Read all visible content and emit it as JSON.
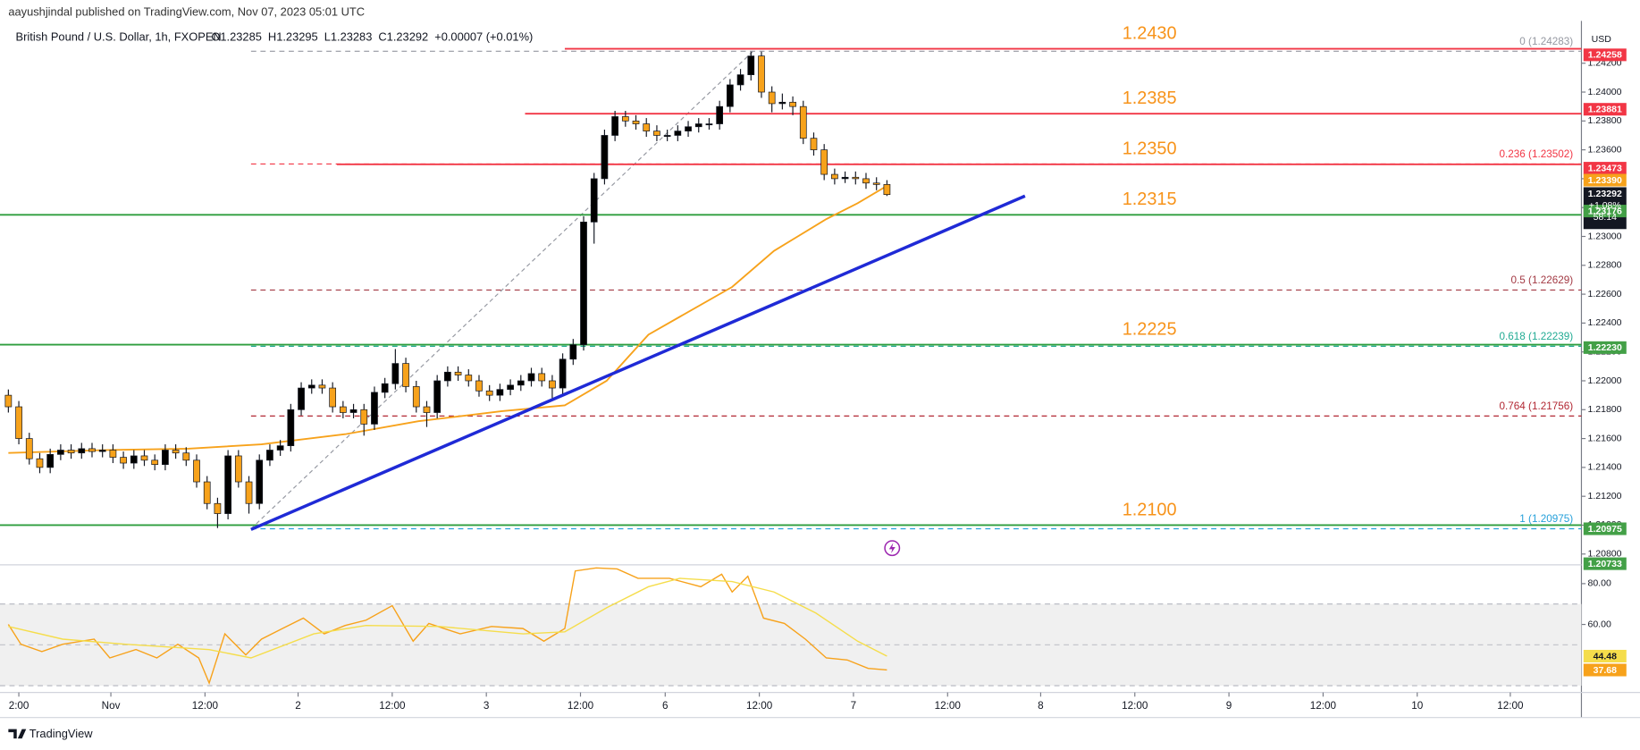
{
  "header": {
    "publisher": "aayushjindal published on TradingView.com, Nov 07, 2023 05:01 UTC",
    "symbol": "British Pound / U.S. Dollar, 1h, FXOPEN",
    "ohlc": [
      "O1.23285",
      "H1.23295",
      "L1.23283",
      "C1.23292",
      "+0.00007 (+0.01%)"
    ]
  },
  "currency": "USD",
  "footer": "TradingView",
  "chart_data": [
    {
      "type": "candlestick",
      "up_color": "#000000",
      "down_color": "#f7a21b",
      "xlim": [
        -0.8,
        150.4
      ],
      "ylim": [
        1.20725,
        1.24435
      ],
      "xticks": [
        {
          "value": 1.0,
          "label": "2:00"
        },
        {
          "value": 9.8,
          "label": "Nov"
        },
        {
          "value": 18.8,
          "label": "12:00"
        },
        {
          "value": 27.7,
          "label": "2"
        },
        {
          "value": 36.7,
          "label": "12:00"
        },
        {
          "value": 45.7,
          "label": "3"
        },
        {
          "value": 54.7,
          "label": "12:00"
        },
        {
          "value": 62.8,
          "label": "6"
        },
        {
          "value": 71.8,
          "label": "12:00"
        },
        {
          "value": 80.8,
          "label": "7"
        },
        {
          "value": 89.8,
          "label": "12:00"
        },
        {
          "value": 98.7,
          "label": "8"
        },
        {
          "value": 107.7,
          "label": "12:00"
        },
        {
          "value": 116.7,
          "label": "9"
        },
        {
          "value": 125.7,
          "label": "12:00"
        },
        {
          "value": 134.7,
          "label": "10"
        },
        {
          "value": 143.6,
          "label": "12:00"
        }
      ],
      "yticks": [
        {
          "value": 1.208,
          "label": "1.20800"
        },
        {
          "value": 1.21,
          "label": "1.21000"
        },
        {
          "value": 1.212,
          "label": "1.21200"
        },
        {
          "value": 1.214,
          "label": "1.21400"
        },
        {
          "value": 1.216,
          "label": "1.21600"
        },
        {
          "value": 1.218,
          "label": "1.21800"
        },
        {
          "value": 1.22,
          "label": "1.22000"
        },
        {
          "value": 1.222,
          "label": "1.22200"
        },
        {
          "value": 1.224,
          "label": "1.22400"
        },
        {
          "value": 1.226,
          "label": "1.22600"
        },
        {
          "value": 1.228,
          "label": "1.22800"
        },
        {
          "value": 1.23,
          "label": "1.23000"
        },
        {
          "value": 1.232,
          "label": "1.23200"
        },
        {
          "value": 1.234,
          "label": "1.23400"
        },
        {
          "value": 1.236,
          "label": "1.23600"
        },
        {
          "value": 1.238,
          "label": "1.23800"
        },
        {
          "value": 1.24,
          "label": "1.24000"
        },
        {
          "value": 1.242,
          "label": "1.24200"
        }
      ],
      "open": [
        1.219,
        1.2182,
        1.216,
        1.2146,
        1.214,
        1.2149,
        1.2152,
        1.215,
        1.2153,
        1.2151,
        1.2152,
        1.2147,
        1.2143,
        1.2148,
        1.2145,
        1.2142,
        1.2152,
        1.215,
        1.2145,
        1.213,
        1.2115,
        1.2108,
        1.2148,
        1.213,
        1.2115,
        1.2145,
        1.2152,
        1.2155,
        1.218,
        1.2195,
        1.2197,
        1.2195,
        1.2182,
        1.2178,
        1.218,
        1.217,
        1.2192,
        1.2198,
        1.2212,
        1.2196,
        1.2182,
        1.2178,
        1.22,
        1.2206,
        1.2204,
        1.22,
        1.2193,
        1.219,
        1.2194,
        1.2197,
        1.22,
        1.2205,
        1.22,
        1.2195,
        1.2215,
        1.2225,
        1.231,
        1.234,
        1.237,
        1.2383,
        1.238,
        1.2378,
        1.2373,
        1.237,
        1.237,
        1.2373,
        1.2376,
        1.2378,
        1.2378,
        1.239,
        1.2405,
        1.2412,
        1.2425,
        1.24,
        1.2392,
        1.2393,
        1.239,
        1.2368,
        1.236,
        1.2343,
        1.234,
        1.2341,
        1.234,
        1.2337,
        1.2336
      ],
      "high": [
        1.2194,
        1.2186,
        1.2164,
        1.215,
        1.2153,
        1.2156,
        1.2156,
        1.2157,
        1.2157,
        1.2156,
        1.2156,
        1.2151,
        1.2152,
        1.2152,
        1.2149,
        1.2156,
        1.2156,
        1.2154,
        1.2149,
        1.2134,
        1.2119,
        1.2152,
        1.2152,
        1.2134,
        1.2149,
        1.2156,
        1.2159,
        1.2184,
        1.2199,
        1.2201,
        1.2201,
        1.2199,
        1.2186,
        1.2184,
        1.2184,
        1.2196,
        1.2202,
        1.2222,
        1.2216,
        1.22,
        1.2186,
        1.2204,
        1.221,
        1.221,
        1.2208,
        1.2204,
        1.2197,
        1.2198,
        1.2201,
        1.2204,
        1.2209,
        1.2209,
        1.2204,
        1.2219,
        1.2229,
        1.2314,
        1.2344,
        1.2374,
        1.2387,
        1.2387,
        1.2384,
        1.2382,
        1.2377,
        1.2374,
        1.2377,
        1.238,
        1.2382,
        1.2382,
        1.2394,
        1.2409,
        1.2416,
        1.2428,
        1.2428,
        1.2404,
        1.2399,
        1.2397,
        1.2394,
        1.2372,
        1.2364,
        1.2347,
        1.2345,
        1.2345,
        1.2344,
        1.2341,
        1.2339
      ],
      "low": [
        1.2178,
        1.2156,
        1.2142,
        1.2136,
        1.2136,
        1.2145,
        1.2146,
        1.2146,
        1.2147,
        1.2147,
        1.2143,
        1.2139,
        1.2139,
        1.2141,
        1.2138,
        1.2138,
        1.2146,
        1.2141,
        1.2126,
        1.2111,
        1.2098,
        1.2104,
        1.2126,
        1.2108,
        1.2111,
        1.2141,
        1.2148,
        1.2151,
        1.2176,
        1.2191,
        1.2191,
        1.2178,
        1.2174,
        1.2174,
        1.2162,
        1.2166,
        1.2188,
        1.2194,
        1.2192,
        1.2178,
        1.2168,
        1.2174,
        1.2196,
        1.22,
        1.2196,
        1.2189,
        1.2186,
        1.2186,
        1.219,
        1.2193,
        1.2196,
        1.2196,
        1.2188,
        1.2191,
        1.2211,
        1.2221,
        1.2295,
        1.2336,
        1.2366,
        1.2376,
        1.2374,
        1.2369,
        1.2366,
        1.2366,
        1.2366,
        1.2369,
        1.2372,
        1.2374,
        1.2374,
        1.2386,
        1.2401,
        1.2408,
        1.2396,
        1.2386,
        1.2388,
        1.2384,
        1.2364,
        1.2356,
        1.2339,
        1.2336,
        1.2337,
        1.2336,
        1.2333,
        1.2332,
        1.2328
      ],
      "close": [
        1.2182,
        1.216,
        1.2146,
        1.214,
        1.2149,
        1.2152,
        1.215,
        1.2153,
        1.2151,
        1.2152,
        1.2147,
        1.2143,
        1.2148,
        1.2145,
        1.2142,
        1.2152,
        1.215,
        1.2145,
        1.213,
        1.2115,
        1.2108,
        1.2148,
        1.213,
        1.2115,
        1.2145,
        1.2152,
        1.2155,
        1.218,
        1.2195,
        1.2197,
        1.2195,
        1.2182,
        1.2178,
        1.218,
        1.217,
        1.2192,
        1.2198,
        1.2212,
        1.2196,
        1.2182,
        1.2178,
        1.22,
        1.2206,
        1.2204,
        1.22,
        1.2193,
        1.219,
        1.2194,
        1.2197,
        1.22,
        1.2205,
        1.22,
        1.2195,
        1.2215,
        1.2225,
        1.231,
        1.234,
        1.237,
        1.2383,
        1.238,
        1.2378,
        1.2373,
        1.237,
        1.237,
        1.2373,
        1.2376,
        1.2378,
        1.2378,
        1.239,
        1.2405,
        1.2412,
        1.2425,
        1.24,
        1.2392,
        1.2393,
        1.239,
        1.2368,
        1.236,
        1.2343,
        1.234,
        1.2341,
        1.234,
        1.2337,
        1.2336,
        1.2329
      ],
      "line_series": [
        {
          "color": "#f7a21b",
          "x": [
            0,
            9.2,
            17.2,
            24.2,
            32.2,
            39.2,
            47.2,
            53.2,
            57.2,
            61.2,
            69.2,
            73.2,
            78.2,
            81.2,
            84
          ],
          "values": [
            1.215,
            1.2152,
            1.2153,
            1.2156,
            1.2163,
            1.2172,
            1.2179,
            1.2183,
            1.22,
            1.2232,
            1.2265,
            1.229,
            1.2312,
            1.2323,
            1.2335
          ]
        }
      ],
      "trendline": {
        "color": "#1f2ad6",
        "x": [
          23.2,
          97.2
        ],
        "values": [
          1.2097,
          1.2328
        ]
      },
      "fib_anchor": {
        "x": [
          23.2,
          71.2
        ],
        "values": [
          1.20975,
          1.24283
        ]
      },
      "fib": [
        {
          "value": 1.24283,
          "label": "0 (1.24283)",
          "color": "#9598a1"
        },
        {
          "value": 1.23502,
          "label": "0.236 (1.23502)",
          "color": "#f23645"
        },
        {
          "value": 1.22629,
          "label": "0.5 (1.22629)",
          "color": "#a33a44"
        },
        {
          "value": 1.22239,
          "label": "0.618 (1.22239)",
          "color": "#22ab94"
        },
        {
          "value": 1.21756,
          "label": "0.764 (1.21756)",
          "color": "#b22833"
        },
        {
          "value": 1.20975,
          "label": "1 (1.20975)",
          "color": "#26a0da"
        }
      ],
      "levels": [
        {
          "value": 1.243,
          "label": "1.2430",
          "color": "#f23645",
          "start": 53.2
        },
        {
          "value": 1.2385,
          "label": "1.2385",
          "color": "#f23645",
          "start": 49.4
        },
        {
          "value": 1.235,
          "label": "1.2350",
          "color": "#f23645",
          "start": 31.4
        },
        {
          "value": 1.2315,
          "label": "1.2315",
          "color": "#2e9e3e"
        },
        {
          "value": 1.2225,
          "label": "1.2225",
          "color": "#2e9e3e"
        },
        {
          "value": 1.21,
          "label": "1.2100",
          "color": "#2e9e3e"
        }
      ],
      "level_label_color": "#f7931a",
      "price_badges": [
        {
          "value": 1.24258,
          "label": "1.24258",
          "color": "#f23645"
        },
        {
          "value": 1.23881,
          "label": "1.23881",
          "color": "#f23645"
        },
        {
          "value": 1.23473,
          "label": "1.23473",
          "color": "#f23645"
        },
        {
          "value": 1.2339,
          "label": "1.23390",
          "color": "#f7a21b"
        },
        {
          "value": 1.23176,
          "label": "1.23176",
          "color": "#43a047"
        },
        {
          "value": 1.2223,
          "label": "1.22230",
          "color": "#43a047"
        },
        {
          "value": 1.20975,
          "label": "1.20975",
          "color": "#43a047"
        },
        {
          "value": 1.20733,
          "label": "1.20733",
          "color": "#43a047"
        }
      ],
      "last_badge": {
        "value": 1.23292,
        "label": "1.23292",
        "change": "+1.08%",
        "countdown": "58:14",
        "color": "#131722"
      }
    },
    {
      "type": "line",
      "xlim": [
        -0.8,
        150.4
      ],
      "ylim": [
        27.7,
        89.2
      ],
      "yticks": [
        {
          "value": 80,
          "label": "80.00"
        },
        {
          "value": 60,
          "label": "60.00"
        }
      ],
      "bands": [
        70,
        30
      ],
      "midline": 50,
      "series": [
        {
          "color": "#f7a21b",
          "x": [
            0,
            1.2,
            3.2,
            5.2,
            8.2,
            9.7,
            12.2,
            14.2,
            16.2,
            18.2,
            19.2,
            20.7,
            22.7,
            24.2,
            26.2,
            28.2,
            30.2,
            32.2,
            34.2,
            36.7,
            38.7,
            40.2,
            43.2,
            46.2,
            49.2,
            51.2,
            53.2,
            54.2,
            56.2,
            58.2,
            60.2,
            63.2,
            66.2,
            68.2,
            69.2,
            70.7,
            72.2,
            74.2,
            76.2,
            78.2,
            80.2,
            82.2,
            84
          ],
          "values": [
            60.0,
            50.3,
            46.7,
            50.3,
            52.8,
            43.6,
            47.7,
            43.6,
            50.3,
            43.6,
            31.3,
            55.4,
            45.1,
            52.8,
            58.0,
            63.1,
            55.4,
            59.5,
            62.1,
            69.2,
            51.8,
            60.5,
            55.4,
            59.0,
            58.0,
            51.8,
            58.0,
            86.2,
            87.7,
            87.2,
            82.6,
            82.6,
            78.5,
            84.6,
            75.9,
            83.6,
            63.1,
            60.5,
            52.8,
            43.6,
            42.6,
            38.5,
            37.7
          ]
        },
        {
          "color": "#f5dd4b",
          "x": [
            0,
            5.2,
            11.2,
            19.2,
            23.2,
            29.2,
            34.2,
            41.2,
            49.2,
            53.2,
            57.2,
            61.2,
            64.2,
            69.2,
            73.2,
            77.2,
            81.2,
            84
          ],
          "values": [
            59,
            52.8,
            50.3,
            47.7,
            43.6,
            55.4,
            59.5,
            59,
            55.4,
            56.4,
            68.2,
            78.5,
            82.6,
            81,
            75.9,
            65.6,
            51.8,
            44.5
          ]
        }
      ],
      "badges": [
        {
          "value": 44.48,
          "label": "44.48",
          "color": "#f5dd4b"
        },
        {
          "value": 37.68,
          "label": "37.68",
          "color": "#f7a21b"
        }
      ]
    }
  ]
}
